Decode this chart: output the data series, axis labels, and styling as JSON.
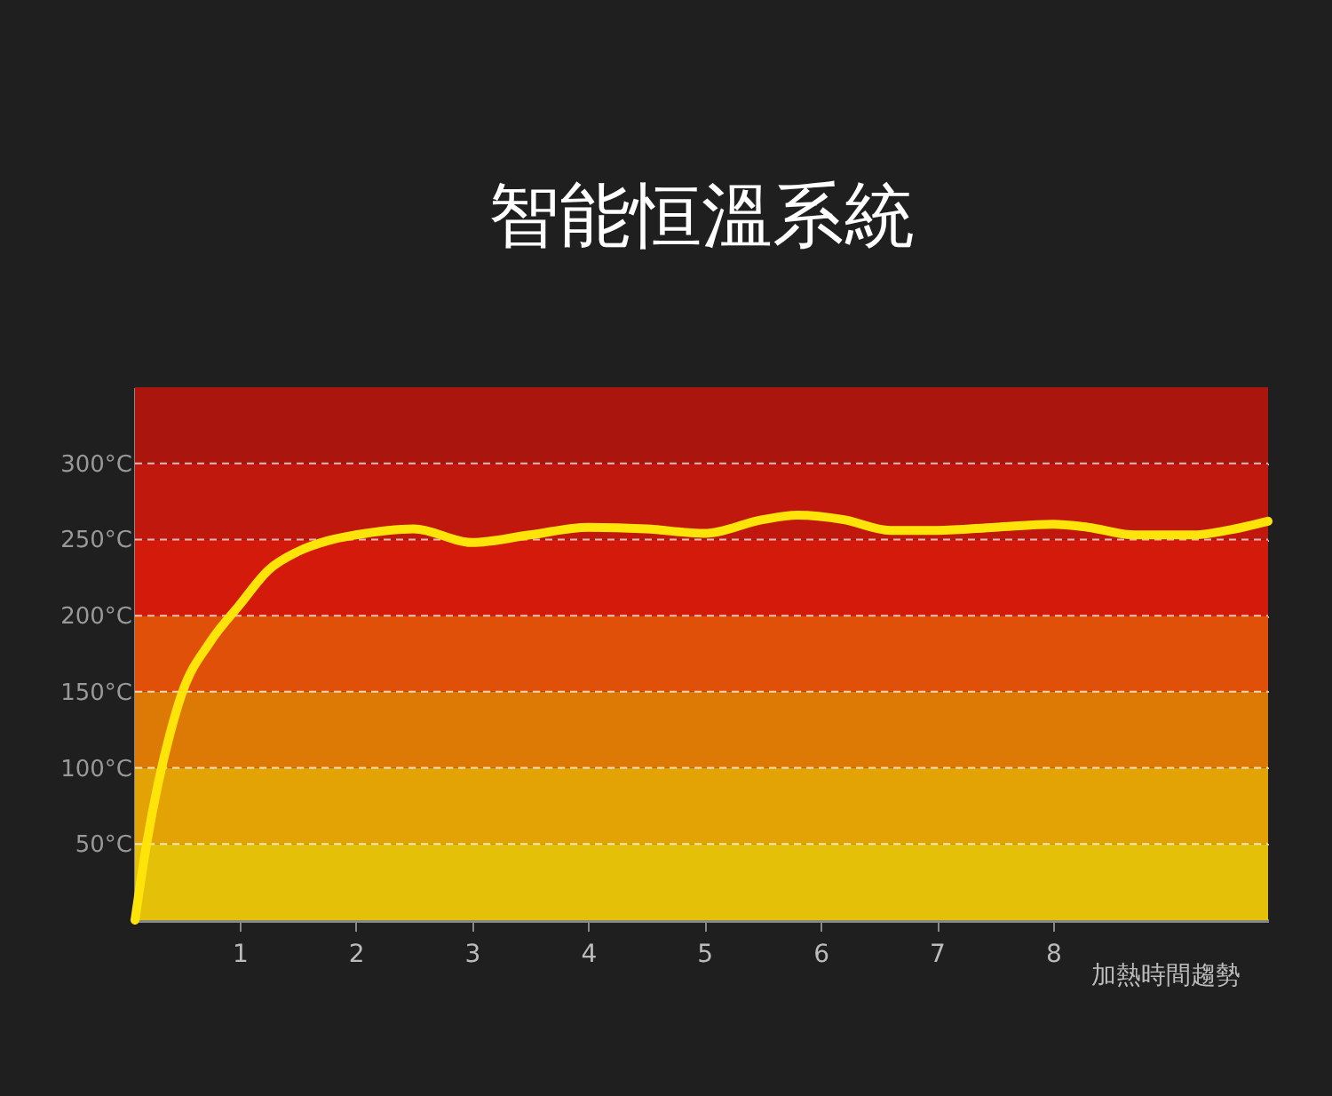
{
  "chart_data": {
    "type": "line",
    "title": "智能恒溫系統",
    "xlabel": "加熱時間趨勢",
    "x": [
      0.1,
      0.2,
      0.3,
      0.4,
      0.5,
      0.75,
      1,
      1.25,
      1.5,
      1.75,
      2,
      2.5,
      3,
      3.5,
      4,
      4.5,
      5,
      5.5,
      5.8,
      6.2,
      6.6,
      7,
      7.5,
      8,
      8.3,
      8.7,
      9.2,
      9.5,
      9.85
    ],
    "series": [
      {
        "color": "#ffe40a",
        "values": [
          0,
          50,
          90,
          122,
          148,
          183,
          207,
          230,
          242,
          249,
          253,
          257,
          248,
          253,
          258,
          257,
          254,
          263,
          266,
          263,
          256,
          256,
          258,
          260,
          258,
          253,
          253,
          256,
          262
        ]
      }
    ],
    "xlim": [
      0.1,
      9.85
    ],
    "xticks": [
      1,
      2,
      3,
      4,
      5,
      6,
      7,
      8
    ],
    "ylim": [
      0,
      350
    ],
    "yticks": [
      {
        "value": 50,
        "label": "50°C"
      },
      {
        "value": 100,
        "label": "100°C"
      },
      {
        "value": 150,
        "label": "150°C"
      },
      {
        "value": 200,
        "label": "200°C"
      },
      {
        "value": 250,
        "label": "250°C"
      },
      {
        "value": 300,
        "label": "300°C"
      }
    ],
    "bands": [
      {
        "axis": "y",
        "from": 0,
        "to": 50,
        "color": "#e4c008"
      },
      {
        "axis": "y",
        "from": 50,
        "to": 100,
        "color": "#e3a305"
      },
      {
        "axis": "y",
        "from": 100,
        "to": 150,
        "color": "#dd7a06"
      },
      {
        "axis": "y",
        "from": 150,
        "to": 200,
        "color": "#e05008"
      },
      {
        "axis": "y",
        "from": 200,
        "to": 250,
        "color": "#d41a0a"
      },
      {
        "axis": "y",
        "from": 250,
        "to": 300,
        "color": "#c0180c"
      },
      {
        "axis": "y",
        "from": 300,
        "to": 350,
        "color": "#aa160e"
      }
    ],
    "grid": "y",
    "line_style": "solid",
    "marker": "none"
  }
}
